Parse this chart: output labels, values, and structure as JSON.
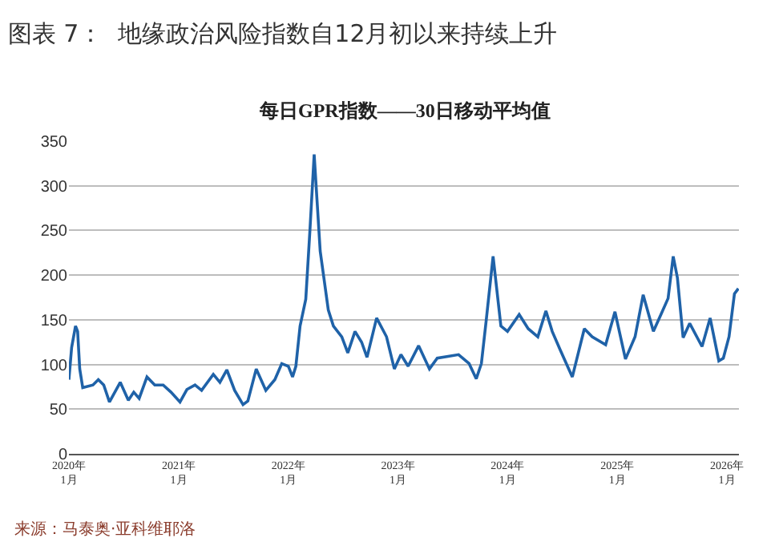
{
  "chart_data": {
    "type": "line",
    "title": "图表 7：  地缘政治风险指数自12月初以来持续上升",
    "subtitle": "每日GPR指数——30日移动平均值",
    "annotations": [
      "来源：马泰奥·亚科维耶洛"
    ],
    "x": [
      "2020-01-01",
      "2020-01-10",
      "2020-01-23",
      "2020-01-30",
      "2020-02-06",
      "2020-02-16",
      "2020-03-21",
      "2020-04-08",
      "2020-04-26",
      "2020-05-15",
      "2020-06-20",
      "2020-07-17",
      "2020-08-04",
      "2020-08-22",
      "2020-09-17",
      "2020-10-13",
      "2020-11-10",
      "2020-12-06",
      "2021-01-05",
      "2021-01-28",
      "2021-02-24",
      "2021-03-18",
      "2021-04-26",
      "2021-05-18",
      "2021-06-10",
      "2021-07-06",
      "2021-08-03",
      "2021-08-19",
      "2021-09-16",
      "2021-10-18",
      "2021-11-17",
      "2021-12-10",
      "2022-01-01",
      "2022-01-15",
      "2022-01-26",
      "2022-02-09",
      "2022-02-28",
      "2022-03-14",
      "2022-03-28",
      "2022-04-17",
      "2022-05-14",
      "2022-05-31",
      "2022-06-28",
      "2022-07-18",
      "2022-08-11",
      "2022-09-02",
      "2022-09-20",
      "2022-10-22",
      "2022-11-24",
      "2022-12-20",
      "2023-01-11",
      "2023-02-04",
      "2023-03-11",
      "2023-04-16",
      "2023-05-12",
      "2023-06-17",
      "2023-07-22",
      "2023-08-26",
      "2023-09-19",
      "2023-10-06",
      "2023-10-22",
      "2023-11-14",
      "2023-12-10",
      "2024-01-01",
      "2024-02-09",
      "2024-03-10",
      "2024-04-11",
      "2024-05-08",
      "2024-05-29",
      "2024-06-25",
      "2024-08-04",
      "2024-09-13",
      "2024-10-09",
      "2024-11-23",
      "2024-12-24",
      "2025-01-28",
      "2025-03-01",
      "2025-03-28",
      "2025-05-01",
      "2025-05-25",
      "2025-06-19",
      "2025-07-06",
      "2025-07-20",
      "2025-08-08",
      "2025-08-30",
      "2025-10-10",
      "2025-11-06",
      "2025-12-05",
      "2025-12-20",
      "2026-01-08",
      "2026-01-26",
      "2026-02-08"
    ],
    "series": [
      {
        "color": "#1f62a8",
        "values": [
          83,
          119,
          143,
          137,
          95,
          74,
          77,
          83,
          77,
          58,
          80,
          60,
          69,
          62,
          86,
          77,
          77,
          69,
          58,
          72,
          77,
          71,
          89,
          80,
          94,
          71,
          55,
          59,
          95,
          71,
          83,
          101,
          98,
          86,
          98,
          143,
          173,
          251,
          335,
          227,
          161,
          143,
          131,
          113,
          137,
          125,
          108,
          152,
          131,
          95,
          111,
          98,
          121,
          95,
          107,
          109,
          111,
          101,
          84,
          101,
          149,
          221,
          143,
          137,
          156,
          140,
          131,
          160,
          137,
          116,
          86,
          140,
          131,
          122,
          159,
          106,
          131,
          178,
          137,
          155,
          174,
          221,
          197,
          130,
          146,
          120,
          152,
          104,
          107,
          131,
          179,
          185
        ]
      }
    ],
    "xlim": [
      "2020-01-01",
      "2026-02-10"
    ],
    "xticks": [
      {
        "value": "2020-01-01",
        "label": "2020年\n1月"
      },
      {
        "value": "2021-01-01",
        "label": "2021年\n1月"
      },
      {
        "value": "2022-01-01",
        "label": "2022年\n1月"
      },
      {
        "value": "2023-01-01",
        "label": "2023年\n1月"
      },
      {
        "value": "2024-01-01",
        "label": "2024年\n1月"
      },
      {
        "value": "2025-01-01",
        "label": "2025年\n1月"
      },
      {
        "value": "2026-01-01",
        "label": "2026年\n1月"
      }
    ],
    "ylim": [
      0,
      350
    ],
    "yticks": [
      0,
      50,
      100,
      150,
      200,
      250,
      300,
      350
    ],
    "grid": "y",
    "line_style": "solid",
    "marker": "none"
  }
}
